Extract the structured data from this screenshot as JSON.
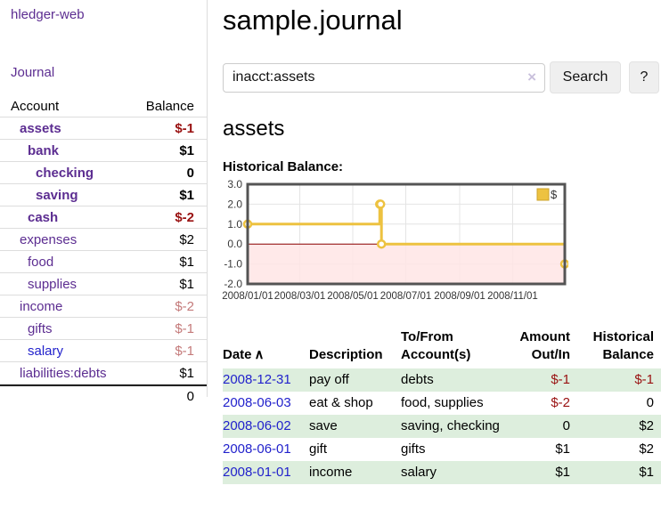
{
  "sidebar": {
    "app_title": "hledger-web",
    "nav": {
      "journal": "Journal"
    },
    "table": {
      "account_header": "Account",
      "balance_header": "Balance",
      "accounts": [
        {
          "name": "assets",
          "balance": "$-1"
        },
        {
          "name": "bank",
          "balance": "$1"
        },
        {
          "name": "checking",
          "balance": "0"
        },
        {
          "name": "saving",
          "balance": "$1"
        },
        {
          "name": "cash",
          "balance": "$-2"
        },
        {
          "name": "expenses",
          "balance": "$2"
        },
        {
          "name": "food",
          "balance": "$1"
        },
        {
          "name": "supplies",
          "balance": "$1"
        },
        {
          "name": "income",
          "balance": "$-2"
        },
        {
          "name": "gifts",
          "balance": "$-1"
        },
        {
          "name": "salary",
          "balance": "$-1"
        },
        {
          "name": "liabilities:debts",
          "balance": "$1"
        }
      ],
      "total": "0"
    }
  },
  "main": {
    "title": "sample.journal",
    "search": {
      "value": "inacct:assets",
      "clear_icon": "×",
      "search_button": "Search",
      "help_button": "?"
    },
    "account_heading": "assets",
    "chart_title": "Historical Balance:"
  },
  "chart_data": {
    "type": "line",
    "step": true,
    "title": "Historical Balance",
    "legend": "top-right",
    "series": [
      {
        "name": "$",
        "color": "#EDC240",
        "points": [
          [
            "2008-01-01",
            1
          ],
          [
            "2008-06-01",
            2
          ],
          [
            "2008-06-02",
            2
          ],
          [
            "2008-06-03",
            0
          ],
          [
            "2008-12-31",
            -1
          ]
        ]
      }
    ],
    "ylim": [
      -2,
      3
    ],
    "yticks": [
      "3.0",
      "2.0",
      "1.0",
      "0.0",
      "-1.0",
      "-2.0"
    ],
    "xticks": [
      "2008/01/01",
      "2008/03/01",
      "2008/05/01",
      "2008/07/01",
      "2008/09/01",
      "2008/11/01"
    ],
    "xrange": [
      "2008-01-01",
      "2008-12-31"
    ],
    "grid": true,
    "negative_region_color": "#ffe5e5",
    "zero_line_color": "#8b0000",
    "border_color": "#545454"
  },
  "register_table": {
    "headers": {
      "date": "Date",
      "sort_arrow": "∧",
      "description": "Description",
      "accounts": "To/From Account(s)",
      "amount": "Amount Out/In",
      "balance": "Historical Balance"
    },
    "rows": [
      {
        "date": "2008-12-31",
        "description": "pay off",
        "accounts": "debts",
        "amount": "$-1",
        "balance": "$-1"
      },
      {
        "date": "2008-06-03",
        "description": "eat & shop",
        "accounts": "food, supplies",
        "amount": "$-2",
        "balance": "0"
      },
      {
        "date": "2008-06-02",
        "description": "save",
        "accounts": "saving, checking",
        "amount": "0",
        "balance": "$2"
      },
      {
        "date": "2008-06-01",
        "description": "gift",
        "accounts": "gifts",
        "amount": "$1",
        "balance": "$2"
      },
      {
        "date": "2008-01-01",
        "description": "income",
        "accounts": "salary",
        "amount": "$1",
        "balance": "$1"
      }
    ]
  }
}
